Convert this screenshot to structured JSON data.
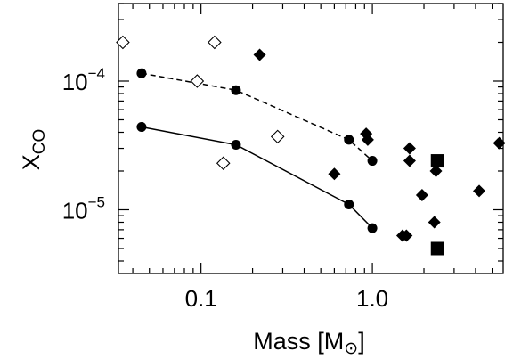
{
  "chart_data": {
    "type": "scatter",
    "title": "",
    "xlabel": "Mass [M⊙]",
    "xlabel_main": "Mass [M",
    "xlabel_symbol": "⊙",
    "xlabel_close": "]",
    "ylabel": "X_CO",
    "ylabel_main": "X",
    "ylabel_sub": "CO",
    "xscale": "log",
    "yscale": "log",
    "xlim": [
      0.033,
      5.8
    ],
    "ylim": [
      3.2e-06,
      0.0004
    ],
    "x_tick_labels": [
      {
        "value": 0.1,
        "label": "0.1"
      },
      {
        "value": 1.0,
        "label": "1.0"
      }
    ],
    "y_tick_labels": [
      {
        "value": 0.0001,
        "base": "10",
        "exp": "−4"
      },
      {
        "value": 1e-05,
        "base": "10",
        "exp": "−5"
      }
    ],
    "grid": false,
    "legend": "none",
    "series": [
      {
        "marker": "circle-filled",
        "line": "dashed",
        "points": [
          [
            0.045,
            0.000115
          ],
          [
            0.16,
            8.5e-05
          ],
          [
            0.73,
            3.5e-05
          ],
          [
            1.0,
            2.4e-05
          ]
        ]
      },
      {
        "marker": "circle-filled",
        "line": "solid",
        "points": [
          [
            0.045,
            4.4e-05
          ],
          [
            0.16,
            3.2e-05
          ],
          [
            0.73,
            1.1e-05
          ],
          [
            1.0,
            7.2e-06
          ]
        ]
      },
      {
        "marker": "diamond-open",
        "line": "none",
        "points": [
          [
            0.035,
            0.0002
          ],
          [
            0.095,
            0.0001
          ],
          [
            0.12,
            0.0002
          ],
          [
            0.135,
            2.3e-05
          ],
          [
            0.28,
            3.7e-05
          ]
        ]
      },
      {
        "marker": "diamond-filled",
        "line": "none",
        "points": [
          [
            0.22,
            0.00016
          ],
          [
            0.6,
            1.9e-05
          ],
          [
            0.92,
            3.9e-05
          ],
          [
            0.94,
            3.5e-05
          ],
          [
            1.5,
            6.3e-06
          ],
          [
            1.58,
            6.3e-06
          ],
          [
            1.65,
            3e-05
          ],
          [
            1.65,
            2.4e-05
          ],
          [
            1.95,
            1.3e-05
          ],
          [
            2.3,
            8e-06
          ],
          [
            2.35,
            2e-05
          ],
          [
            4.2,
            1.4e-05
          ],
          [
            5.5,
            3.3e-05
          ]
        ]
      },
      {
        "marker": "square-filled",
        "line": "none",
        "points": [
          [
            2.4,
            2.4e-05
          ],
          [
            2.4,
            5e-06
          ]
        ]
      }
    ]
  }
}
